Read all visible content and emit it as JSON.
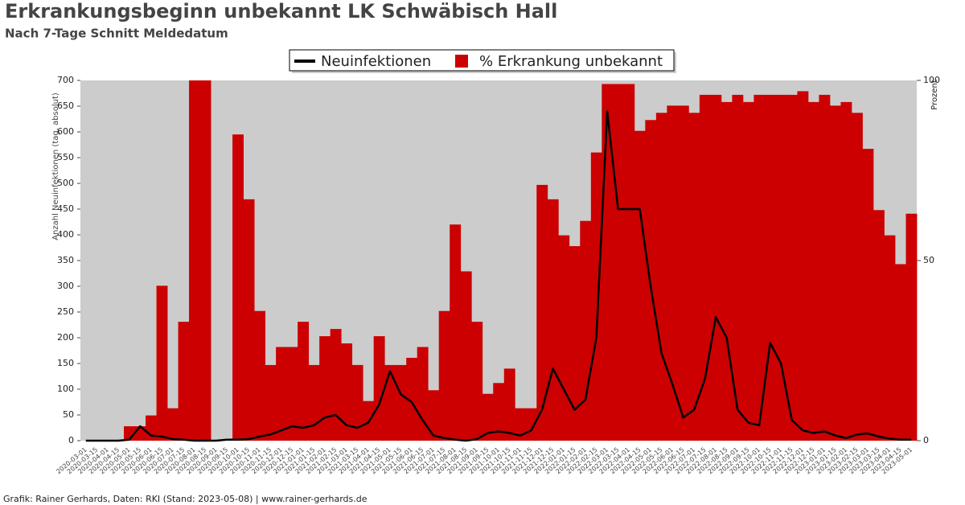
{
  "chart_data": {
    "type": "bar_line",
    "title": "Erkrankungsbeginn unbekannt LK Schwäbisch Hall",
    "subtitle": "Nach 7-Tage Schnitt Meldedatum",
    "y_label": "Anzahl Neuinfektionen (tag. absolut)",
    "y2_label": "Prozent",
    "footer": "Grafik: Rainer Gerhards, Daten: RKI (Stand: 2023-05-08) | www.rainer-gerhards.de",
    "categories": [
      "2020-03-01",
      "2020-03-15",
      "2020-04-01",
      "2020-04-15",
      "2020-05-01",
      "2020-05-15",
      "2020-06-01",
      "2020-06-15",
      "2020-07-01",
      "2020-07-15",
      "2020-08-01",
      "2020-08-15",
      "2020-09-01",
      "2020-09-15",
      "2020-10-01",
      "2020-10-15",
      "2020-11-01",
      "2020-11-15",
      "2020-12-01",
      "2020-12-15",
      "2021-01-01",
      "2021-01-15",
      "2021-02-01",
      "2021-02-15",
      "2021-03-01",
      "2021-03-15",
      "2021-04-01",
      "2021-04-15",
      "2021-05-01",
      "2021-05-15",
      "2021-06-01",
      "2021-06-15",
      "2021-07-01",
      "2021-07-15",
      "2021-08-01",
      "2021-08-15",
      "2021-09-01",
      "2021-09-15",
      "2021-10-01",
      "2021-10-15",
      "2021-11-01",
      "2021-11-15",
      "2021-12-01",
      "2021-12-15",
      "2022-01-01",
      "2022-01-15",
      "2022-02-01",
      "2022-02-15",
      "2022-03-01",
      "2022-03-15",
      "2022-04-01",
      "2022-04-15",
      "2022-05-01",
      "2022-05-15",
      "2022-06-01",
      "2022-06-15",
      "2022-07-01",
      "2022-07-15",
      "2022-08-01",
      "2022-08-15",
      "2022-09-01",
      "2022-09-15",
      "2022-10-01",
      "2022-10-15",
      "2022-11-01",
      "2022-11-15",
      "2022-12-01",
      "2022-12-15",
      "2023-01-01",
      "2023-01-15",
      "2023-02-01",
      "2023-02-15",
      "2023-03-01",
      "2023-03-15",
      "2023-04-01",
      "2023-04-15",
      "2023-05-01"
    ],
    "series": [
      {
        "name": "Neuinfektionen",
        "color": "#000000",
        "kind": "line",
        "values": [
          0,
          0,
          0,
          0,
          2,
          28,
          10,
          8,
          3,
          2,
          0,
          0,
          0,
          2,
          2,
          3,
          8,
          12,
          20,
          28,
          25,
          30,
          45,
          50,
          30,
          25,
          35,
          70,
          135,
          90,
          75,
          40,
          10,
          5,
          2,
          0,
          3,
          15,
          18,
          15,
          10,
          20,
          60,
          140,
          100,
          60,
          80,
          200,
          640,
          450,
          450,
          450,
          300,
          170,
          110,
          45,
          60,
          120,
          240,
          200,
          60,
          35,
          30,
          190,
          150,
          40,
          20,
          15,
          18,
          10,
          5,
          12,
          14,
          8,
          4,
          2,
          2
        ]
      },
      {
        "name": "% Erkrankung unbekannt",
        "color": "#cc0000",
        "kind": "bar",
        "axis": "y2",
        "values": [
          0,
          0,
          0,
          0,
          4,
          4,
          7,
          43,
          9,
          33,
          100,
          100,
          0,
          0,
          85,
          67,
          36,
          21,
          26,
          26,
          33,
          21,
          29,
          31,
          27,
          21,
          11,
          29,
          21,
          21,
          23,
          26,
          14,
          36,
          60,
          47,
          33,
          13,
          16,
          20,
          9,
          9,
          71,
          67,
          57,
          54,
          61,
          80,
          99,
          99,
          99,
          86,
          89,
          91,
          93,
          93,
          91,
          96,
          96,
          94,
          96,
          94,
          96,
          96,
          96,
          96,
          97,
          94,
          96,
          93,
          94,
          91,
          81,
          64,
          57,
          49,
          63
        ]
      }
    ],
    "ylim": [
      0,
      700
    ],
    "yticks": [
      0,
      50,
      100,
      150,
      200,
      250,
      300,
      350,
      400,
      450,
      500,
      550,
      600,
      650,
      700
    ],
    "y2lim": [
      0,
      100
    ],
    "y2ticks": [
      0,
      50,
      100
    ]
  }
}
